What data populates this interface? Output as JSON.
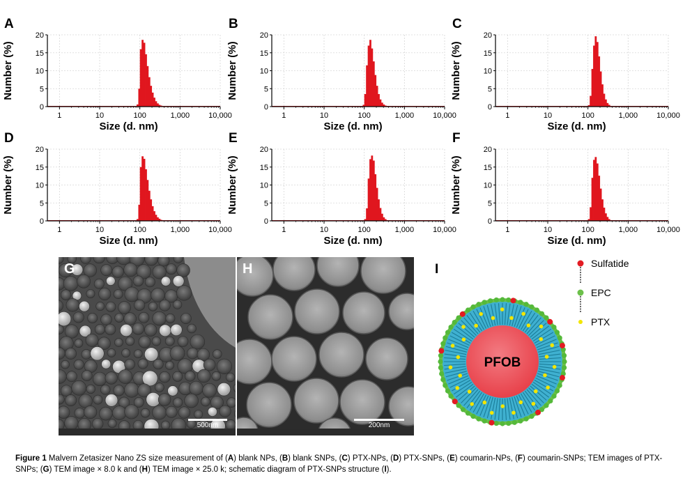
{
  "chart_data": [
    {
      "type": "bar",
      "panel": "A",
      "xlabel": "Size (d. nm)",
      "ylabel": "Number (%)",
      "x_scale": "log",
      "xlim": [
        0.5,
        10000
      ],
      "ylim": [
        0,
        20
      ],
      "x_ticks": [
        "1",
        "10",
        "100",
        "1,000",
        "10,000"
      ],
      "y_ticks": [
        "0",
        "5",
        "10",
        "15",
        "20"
      ],
      "grid": true,
      "x": [
        87,
        96,
        105,
        116,
        128,
        141,
        155,
        171,
        188,
        207,
        228,
        251,
        277,
        305,
        336,
        370,
        407,
        449
      ],
      "values": [
        0.6,
        5.0,
        16.0,
        18.6,
        17.8,
        14.6,
        11.3,
        8.2,
        5.8,
        3.9,
        2.5,
        1.5,
        0.9,
        0.5,
        0.3,
        0.15,
        0.08,
        0.03
      ]
    },
    {
      "type": "bar",
      "panel": "B",
      "xlabel": "Size (d. nm)",
      "ylabel": "Number (%)",
      "x_scale": "log",
      "xlim": [
        0.5,
        10000
      ],
      "ylim": [
        0,
        20
      ],
      "x_ticks": [
        "1",
        "10",
        "100",
        "1,000",
        "10,000"
      ],
      "y_ticks": [
        "0",
        "5",
        "10",
        "15",
        "20"
      ],
      "grid": true,
      "x": [
        96,
        105,
        116,
        128,
        141,
        155,
        171,
        188,
        207,
        228,
        251,
        277,
        305,
        336,
        370,
        407
      ],
      "values": [
        0.5,
        3.5,
        11.5,
        17.0,
        18.6,
        16.2,
        12.6,
        8.8,
        5.8,
        3.5,
        2.0,
        1.1,
        0.6,
        0.3,
        0.15,
        0.05
      ]
    },
    {
      "type": "bar",
      "panel": "C",
      "xlabel": "Size (d. nm)",
      "ylabel": "Number (%)",
      "x_scale": "log",
      "xlim": [
        0.5,
        10000
      ],
      "ylim": [
        0,
        20
      ],
      "x_ticks": [
        "1",
        "10",
        "100",
        "1,000",
        "10,000"
      ],
      "y_ticks": [
        "0",
        "5",
        "10",
        "15",
        "20"
      ],
      "grid": true,
      "x": [
        105,
        116,
        128,
        141,
        155,
        171,
        188,
        207,
        228,
        251,
        277,
        305,
        336,
        370,
        407
      ],
      "values": [
        0.4,
        3.0,
        10.5,
        17.0,
        19.6,
        18.0,
        14.0,
        9.8,
        6.2,
        3.6,
        2.0,
        1.0,
        0.5,
        0.2,
        0.08
      ]
    },
    {
      "type": "bar",
      "panel": "D",
      "xlabel": "Size (d. nm)",
      "ylabel": "Number (%)",
      "x_scale": "log",
      "xlim": [
        0.5,
        10000
      ],
      "ylim": [
        0,
        20
      ],
      "x_ticks": [
        "1",
        "10",
        "100",
        "1,000",
        "10,000"
      ],
      "y_ticks": [
        "0",
        "5",
        "10",
        "15",
        "20"
      ],
      "grid": true,
      "x": [
        87,
        96,
        105,
        116,
        128,
        141,
        155,
        171,
        188,
        207,
        228,
        251,
        277,
        305,
        336,
        370,
        407
      ],
      "values": [
        0.5,
        4.5,
        15.0,
        18.0,
        17.3,
        14.4,
        11.4,
        8.4,
        6.0,
        4.1,
        2.7,
        1.7,
        1.0,
        0.6,
        0.3,
        0.15,
        0.05
      ]
    },
    {
      "type": "bar",
      "panel": "E",
      "xlabel": "Size (d. nm)",
      "ylabel": "Number (%)",
      "x_scale": "log",
      "xlim": [
        0.5,
        10000
      ],
      "ylim": [
        0,
        20
      ],
      "x_ticks": [
        "1",
        "10",
        "100",
        "1,000",
        "10,000"
      ],
      "y_ticks": [
        "0",
        "5",
        "10",
        "15",
        "20"
      ],
      "grid": true,
      "x": [
        105,
        116,
        128,
        141,
        155,
        171,
        188,
        207,
        228,
        251,
        277,
        305,
        336,
        370,
        407
      ],
      "values": [
        0.5,
        3.5,
        11.8,
        17.2,
        18.2,
        16.8,
        13.0,
        9.2,
        6.0,
        3.6,
        2.0,
        1.0,
        0.5,
        0.2,
        0.08
      ]
    },
    {
      "type": "bar",
      "panel": "F",
      "xlabel": "Size (d. nm)",
      "ylabel": "Number (%)",
      "x_scale": "log",
      "xlim": [
        0.5,
        10000
      ],
      "ylim": [
        0,
        20
      ],
      "x_ticks": [
        "1",
        "10",
        "100",
        "1,000",
        "10,000"
      ],
      "y_ticks": [
        "0",
        "5",
        "10",
        "15",
        "20"
      ],
      "grid": true,
      "x": [
        105,
        116,
        128,
        141,
        155,
        171,
        188,
        207,
        228,
        251,
        277,
        305,
        336,
        370,
        407
      ],
      "values": [
        0.5,
        3.8,
        12.0,
        17.0,
        17.8,
        16.0,
        12.6,
        9.0,
        6.0,
        3.7,
        2.1,
        1.1,
        0.5,
        0.2,
        0.08
      ]
    }
  ],
  "bar_color": "#e0161e",
  "tem_images": [
    {
      "letter": "G",
      "scale_label": "500nm"
    },
    {
      "letter": "H",
      "scale_label": "200nm"
    }
  ],
  "schematic": {
    "letter": "I",
    "core_label": "PFOB",
    "legend": [
      {
        "label": "Sulfatide",
        "color": "#e31b23"
      },
      {
        "label": "EPC",
        "color": "#6cc04a"
      },
      {
        "label": "PTX",
        "color": "#f2e600"
      }
    ],
    "colors": {
      "core": "#e8414a",
      "shell": "#3fb0d0",
      "ring": "#6cc04a"
    }
  },
  "caption": {
    "figure_label": "Figure 1",
    "segments": [
      {
        "t": " Malvern Zetasizer Nano ZS size measurement of (",
        "b": false
      },
      {
        "t": "A",
        "b": true
      },
      {
        "t": ") blank NPs, (",
        "b": false
      },
      {
        "t": "B",
        "b": true
      },
      {
        "t": ") blank SNPs, (",
        "b": false
      },
      {
        "t": "C",
        "b": true
      },
      {
        "t": ") PTX-NPs, (",
        "b": false
      },
      {
        "t": "D",
        "b": true
      },
      {
        "t": ") PTX-SNPs, (",
        "b": false
      },
      {
        "t": "E",
        "b": true
      },
      {
        "t": ") coumarin-NPs, (",
        "b": false
      },
      {
        "t": "F",
        "b": true
      },
      {
        "t": ") coumarin-SNPs; TEM images of PTX-SNPs; (",
        "b": false
      },
      {
        "t": "G",
        "b": true
      },
      {
        "t": ") TEM image × 8.0 k and (",
        "b": false
      },
      {
        "t": "H",
        "b": true
      },
      {
        "t": ") TEM image × 25.0 k; schematic diagram of PTX-SNPs structure (",
        "b": false
      },
      {
        "t": "I",
        "b": true
      },
      {
        "t": ").",
        "b": false
      }
    ]
  }
}
